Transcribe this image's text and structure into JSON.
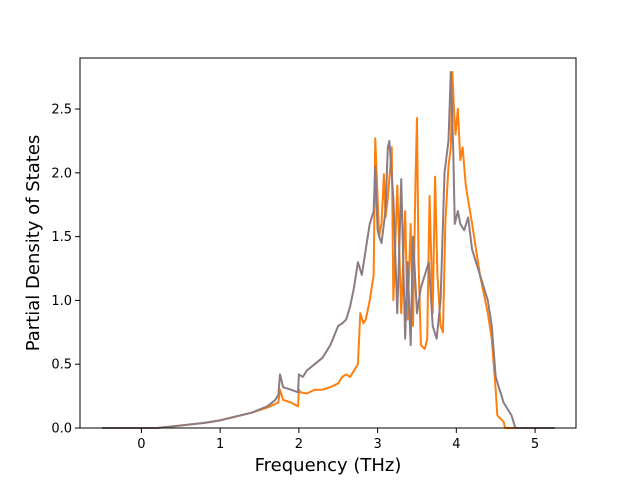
{
  "chart_data": {
    "type": "line",
    "title": "",
    "xlabel": "Frequency (THz)",
    "ylabel": "Partial Density of States",
    "xlim": [
      -0.78,
      5.52
    ],
    "ylim": [
      0.0,
      2.9
    ],
    "xticks": [
      0,
      1,
      2,
      3,
      4,
      5
    ],
    "yticks": [
      0.0,
      0.5,
      1.0,
      1.5,
      2.0,
      2.5
    ],
    "xtick_labels": [
      "0",
      "1",
      "2",
      "3",
      "4",
      "5"
    ],
    "ytick_labels": [
      "0.0",
      "0.5",
      "1.0",
      "1.5",
      "2.0",
      "2.5"
    ],
    "grid": false,
    "legend": "none",
    "series": [
      {
        "color": "#ff7f0e",
        "x": [
          -0.5,
          0.2,
          0.5,
          0.8,
          1.0,
          1.2,
          1.4,
          1.6,
          1.74,
          1.76,
          1.8,
          1.9,
          1.99,
          2.0,
          2.02,
          2.1,
          2.2,
          2.3,
          2.4,
          2.5,
          2.55,
          2.6,
          2.65,
          2.7,
          2.75,
          2.78,
          2.82,
          2.85,
          2.9,
          2.95,
          2.97,
          3.0,
          3.02,
          3.05,
          3.08,
          3.1,
          3.13,
          3.18,
          3.2,
          3.25,
          3.3,
          3.35,
          3.38,
          3.42,
          3.45,
          3.48,
          3.5,
          3.52,
          3.55,
          3.6,
          3.63,
          3.66,
          3.7,
          3.73,
          3.76,
          3.8,
          3.83,
          3.86,
          3.9,
          3.93,
          3.95,
          3.97,
          3.99,
          4.02,
          4.05,
          4.08,
          4.12,
          4.2,
          4.3,
          4.4,
          4.45,
          4.5,
          4.52,
          4.55,
          4.6,
          4.62,
          4.65,
          5.25
        ],
        "y": [
          0.0,
          0.0,
          0.02,
          0.04,
          0.06,
          0.09,
          0.12,
          0.16,
          0.2,
          0.3,
          0.22,
          0.2,
          0.17,
          0.3,
          0.28,
          0.27,
          0.3,
          0.3,
          0.32,
          0.35,
          0.4,
          0.42,
          0.4,
          0.45,
          0.5,
          0.9,
          0.82,
          0.85,
          1.0,
          1.2,
          2.27,
          1.8,
          1.5,
          1.6,
          1.99,
          1.65,
          1.8,
          2.2,
          1.0,
          1.9,
          0.9,
          1.7,
          0.85,
          1.6,
          0.8,
          1.9,
          2.43,
          1.3,
          0.65,
          0.62,
          0.7,
          1.82,
          0.9,
          1.97,
          1.2,
          0.8,
          0.75,
          1.6,
          2.05,
          2.2,
          2.79,
          2.5,
          2.3,
          2.5,
          2.1,
          2.2,
          1.9,
          1.6,
          1.2,
          0.9,
          0.7,
          0.3,
          0.1,
          0.08,
          0.05,
          0.0,
          0.0,
          0.0
        ]
      },
      {
        "color": "#8c7b83",
        "x": [
          -0.5,
          0.2,
          0.5,
          0.8,
          1.0,
          1.2,
          1.4,
          1.6,
          1.7,
          1.74,
          1.76,
          1.8,
          1.9,
          1.99,
          2.0,
          2.05,
          2.1,
          2.2,
          2.3,
          2.4,
          2.5,
          2.55,
          2.6,
          2.65,
          2.7,
          2.75,
          2.8,
          2.85,
          2.9,
          2.95,
          2.97,
          3.0,
          3.02,
          3.05,
          3.1,
          3.13,
          3.15,
          3.2,
          3.25,
          3.28,
          3.3,
          3.35,
          3.38,
          3.42,
          3.45,
          3.5,
          3.55,
          3.6,
          3.65,
          3.7,
          3.75,
          3.8,
          3.85,
          3.9,
          3.93,
          3.96,
          3.98,
          4.02,
          4.05,
          4.1,
          4.15,
          4.2,
          4.3,
          4.4,
          4.45,
          4.5,
          4.55,
          4.6,
          4.65,
          4.7,
          4.75,
          5.25
        ],
        "y": [
          0.0,
          0.0,
          0.02,
          0.04,
          0.06,
          0.09,
          0.12,
          0.17,
          0.22,
          0.26,
          0.42,
          0.32,
          0.3,
          0.28,
          0.42,
          0.4,
          0.45,
          0.5,
          0.55,
          0.65,
          0.8,
          0.82,
          0.85,
          0.95,
          1.1,
          1.3,
          1.2,
          1.4,
          1.6,
          1.7,
          2.05,
          1.55,
          1.5,
          1.45,
          1.7,
          2.2,
          2.25,
          1.8,
          0.9,
          1.5,
          1.95,
          0.7,
          1.3,
          0.65,
          1.5,
          0.9,
          1.1,
          1.2,
          1.3,
          0.8,
          0.7,
          1.0,
          2.0,
          2.25,
          2.79,
          2.2,
          1.6,
          1.7,
          1.6,
          1.55,
          1.65,
          1.4,
          1.2,
          1.0,
          0.8,
          0.4,
          0.3,
          0.2,
          0.15,
          0.1,
          0.0,
          0.0
        ]
      }
    ]
  }
}
